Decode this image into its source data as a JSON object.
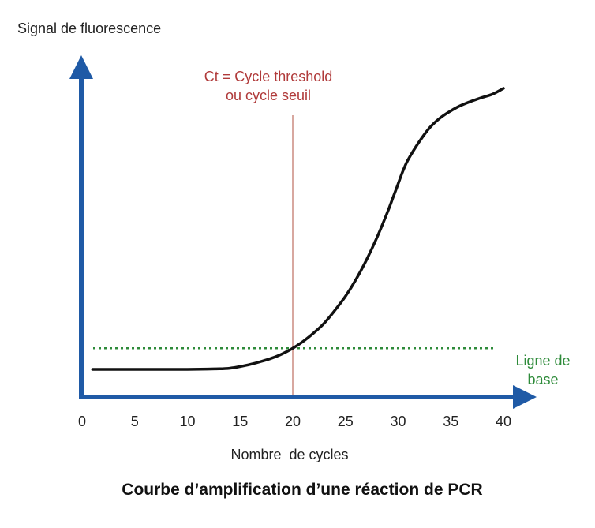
{
  "chart_data": {
    "type": "line",
    "title": "Courbe d’amplification d’une réaction de PCR",
    "ylabel": "Signal de fluorescence",
    "xlabel": "Nombre  de cycles",
    "xlim": [
      0,
      40
    ],
    "xticks": [
      "0",
      "5",
      "10",
      "15",
      "20",
      "25",
      "30",
      "35",
      "40"
    ],
    "series": [
      {
        "x": [
          1,
          5,
          10,
          13,
          14,
          15,
          16,
          17,
          18,
          19,
          20,
          21,
          22,
          23,
          24,
          25,
          26,
          27,
          28,
          29,
          29.5,
          30,
          30.5,
          31,
          32,
          33,
          34,
          35,
          36,
          37,
          38,
          39,
          40
        ],
        "y": [
          0.0,
          0.0,
          0.0,
          0.002,
          0.004,
          0.01,
          0.018,
          0.028,
          0.04,
          0.055,
          0.075,
          0.1,
          0.13,
          0.165,
          0.21,
          0.26,
          0.32,
          0.39,
          0.47,
          0.56,
          0.61,
          0.66,
          0.71,
          0.75,
          0.81,
          0.86,
          0.895,
          0.92,
          0.94,
          0.955,
          0.968,
          0.98,
          1.0
        ]
      }
    ],
    "threshold": {
      "x": 20,
      "label_line1": "Ct = Cycle threshold",
      "label_line2": "ou cycle seuil",
      "color": "#b03a3a"
    },
    "baseline": {
      "y": 0.075,
      "label_line1": "Ligne de",
      "label_line2": "base",
      "color": "#2e8b3a"
    },
    "colors": {
      "axis": "#1f5aa6",
      "curve": "#111111",
      "threshold_line": "#d8a8a0",
      "text": "#222222"
    }
  }
}
